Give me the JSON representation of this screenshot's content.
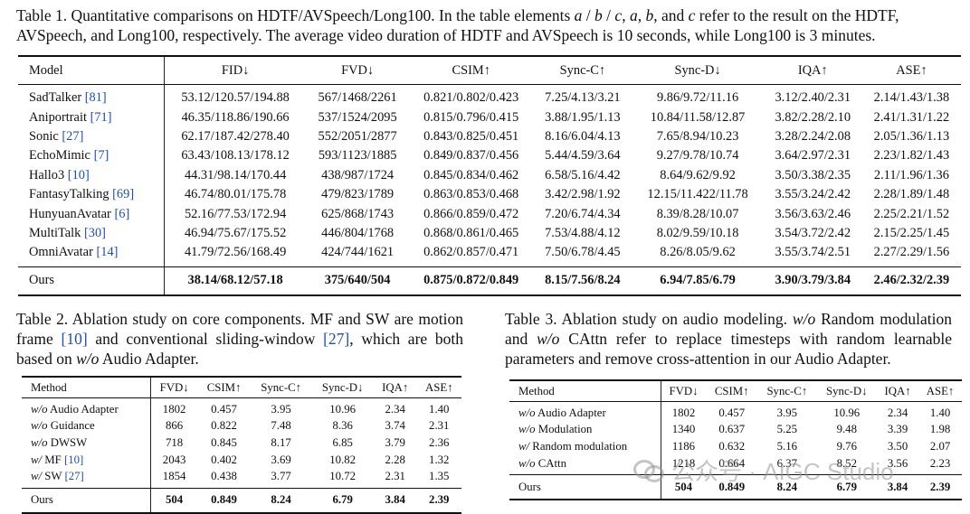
{
  "table1": {
    "caption_label": "Table 1.",
    "caption_text": "Quantitative comparisons on HDTF/AVSpeech/Long100. In the table elements a / b / c, a, b, and c refer to the result on the HDTF, AVSpeech, and Long100, respectively. The average video duration of HDTF and AVSpeech is 10 seconds, while Long100 is 3 minutes.",
    "headers": [
      "Model",
      "FID↓",
      "FVD↓",
      "CSIM↑",
      "Sync-C↑",
      "Sync-D↓",
      "IQA↑",
      "ASE↑"
    ],
    "rows": [
      {
        "model": "SadTalker",
        "cite": "[81]",
        "vals": [
          "53.12/120.57/194.88",
          "567/1468/2261",
          "0.821/0.802/0.423",
          "7.25/4.13/3.21",
          "9.86/9.72/11.16",
          "3.12/2.40/2.31",
          "2.14/1.43/1.38"
        ]
      },
      {
        "model": "Aniportrait",
        "cite": "[71]",
        "vals": [
          "46.35/118.86/190.66",
          "537/1524/2095",
          "0.815/0.796/0.415",
          "3.88/1.95/1.13",
          "10.84/11.58/12.87",
          "3.82/2.28/2.10",
          "2.41/1.31/1.22"
        ]
      },
      {
        "model": "Sonic",
        "cite": "[27]",
        "vals": [
          "62.17/187.42/278.40",
          "552/2051/2877",
          "0.843/0.825/0.451",
          "8.16/6.04/4.13",
          "7.65/8.94/10.23",
          "3.28/2.24/2.08",
          "2.05/1.36/1.13"
        ]
      },
      {
        "model": "EchoMimic",
        "cite": "[7]",
        "vals": [
          "63.43/108.13/178.12",
          "593/1123/1885",
          "0.849/0.837/0.456",
          "5.44/4.59/3.64",
          "9.27/9.78/10.74",
          "3.64/2.97/2.31",
          "2.23/1.82/1.43"
        ]
      },
      {
        "model": "Hallo3",
        "cite": "[10]",
        "vals": [
          "44.31/98.14/170.44",
          "438/987/1724",
          "0.845/0.834/0.462",
          "6.58/5.16/4.42",
          "8.64/9.62/9.92",
          "3.50/3.38/2.35",
          "2.11/1.96/1.36"
        ]
      },
      {
        "model": "FantasyTalking",
        "cite": "[69]",
        "vals": [
          "46.74/80.01/175.78",
          "479/823/1789",
          "0.863/0.853/0.468",
          "3.42/2.98/1.92",
          "12.15/11.422/11.78",
          "3.55/3.24/2.42",
          "2.28/1.89/1.48"
        ]
      },
      {
        "model": "HunyuanAvatar",
        "cite": "[6]",
        "vals": [
          "52.16/77.53/172.94",
          "625/868/1743",
          "0.866/0.859/0.472",
          "7.20/6.74/4.34",
          "8.39/8.28/10.07",
          "3.56/3.63/2.46",
          "2.25/2.21/1.52"
        ]
      },
      {
        "model": "MultiTalk",
        "cite": "[30]",
        "vals": [
          "46.94/75.67/175.52",
          "446/804/1768",
          "0.868/0.861/0.465",
          "7.53/4.88/4.12",
          "8.02/9.59/10.18",
          "3.54/3.72/2.42",
          "2.15/2.25/1.45"
        ]
      },
      {
        "model": "OmniAvatar",
        "cite": "[14]",
        "vals": [
          "41.79/72.56/168.49",
          "424/744/1621",
          "0.862/0.857/0.471",
          "7.50/6.78/4.45",
          "8.26/8.05/9.62",
          "3.55/3.74/2.51",
          "2.27/2.29/1.56"
        ]
      }
    ],
    "ours": {
      "model": "Ours",
      "vals": [
        "38.14/68.12/57.18",
        "375/640/504",
        "0.875/0.872/0.849",
        "8.15/7.56/8.24",
        "6.94/7.85/6.79",
        "3.90/3.79/3.84",
        "2.46/2.32/2.39"
      ]
    }
  },
  "table2": {
    "caption_label": "Table 2.",
    "caption_text": "Ablation study on core components. MF and SW are motion frame [10] and conventional sliding-window [27], which are both based on w/o Audio Adapter.",
    "headers": [
      "Method",
      "FVD↓",
      "CSIM↑",
      "Sync-C↑",
      "Sync-D↓",
      "IQA↑",
      "ASE↑"
    ],
    "rows": [
      {
        "prefix": "w/o",
        "name": "Audio Adapter",
        "cite": "",
        "vals": [
          "1802",
          "0.457",
          "3.95",
          "10.96",
          "2.34",
          "1.40"
        ]
      },
      {
        "prefix": "w/o",
        "name": "Guidance",
        "cite": "",
        "vals": [
          "866",
          "0.822",
          "7.48",
          "8.36",
          "3.74",
          "2.31"
        ]
      },
      {
        "prefix": "w/o",
        "name": "DWSW",
        "cite": "",
        "vals": [
          "718",
          "0.845",
          "8.17",
          "6.85",
          "3.79",
          "2.36"
        ]
      },
      {
        "prefix": "w/",
        "name": "MF",
        "cite": "[10]",
        "vals": [
          "2043",
          "0.402",
          "3.69",
          "10.82",
          "2.28",
          "1.32"
        ]
      },
      {
        "prefix": "w/",
        "name": "SW",
        "cite": "[27]",
        "vals": [
          "1854",
          "0.438",
          "3.77",
          "10.72",
          "2.31",
          "1.35"
        ]
      }
    ],
    "ours": {
      "name": "Ours",
      "vals": [
        "504",
        "0.849",
        "8.24",
        "6.79",
        "3.84",
        "2.39"
      ]
    }
  },
  "table3": {
    "caption_label": "Table 3.",
    "caption_text": "Ablation study on audio modeling. w/o Random modulation and w/o CAttn refer to replace timesteps with random learnable parameters and remove cross-attention in our Audio Adapter.",
    "headers": [
      "Method",
      "FVD↓",
      "CSIM↑",
      "Sync-C↑",
      "Sync-D↓",
      "IQA↑",
      "ASE↑"
    ],
    "rows": [
      {
        "prefix": "w/o",
        "name": "Audio Adapter",
        "vals": [
          "1802",
          "0.457",
          "3.95",
          "10.96",
          "2.34",
          "1.40"
        ]
      },
      {
        "prefix": "w/o",
        "name": "Modulation",
        "vals": [
          "1340",
          "0.637",
          "5.25",
          "9.48",
          "3.39",
          "1.98"
        ]
      },
      {
        "prefix": "w/",
        "name": "Random modulation",
        "vals": [
          "1186",
          "0.632",
          "5.16",
          "9.76",
          "3.50",
          "2.07"
        ]
      },
      {
        "prefix": "w/o",
        "name": "CAttn",
        "vals": [
          "1218",
          "0.664",
          "6.37",
          "8.52",
          "3.56",
          "2.23"
        ]
      }
    ],
    "ours": {
      "name": "Ours",
      "vals": [
        "504",
        "0.849",
        "8.24",
        "6.79",
        "3.84",
        "2.39"
      ]
    }
  },
  "watermark": {
    "text": "公众号 · AIGC Studio",
    "icon": "wechat-logo"
  }
}
